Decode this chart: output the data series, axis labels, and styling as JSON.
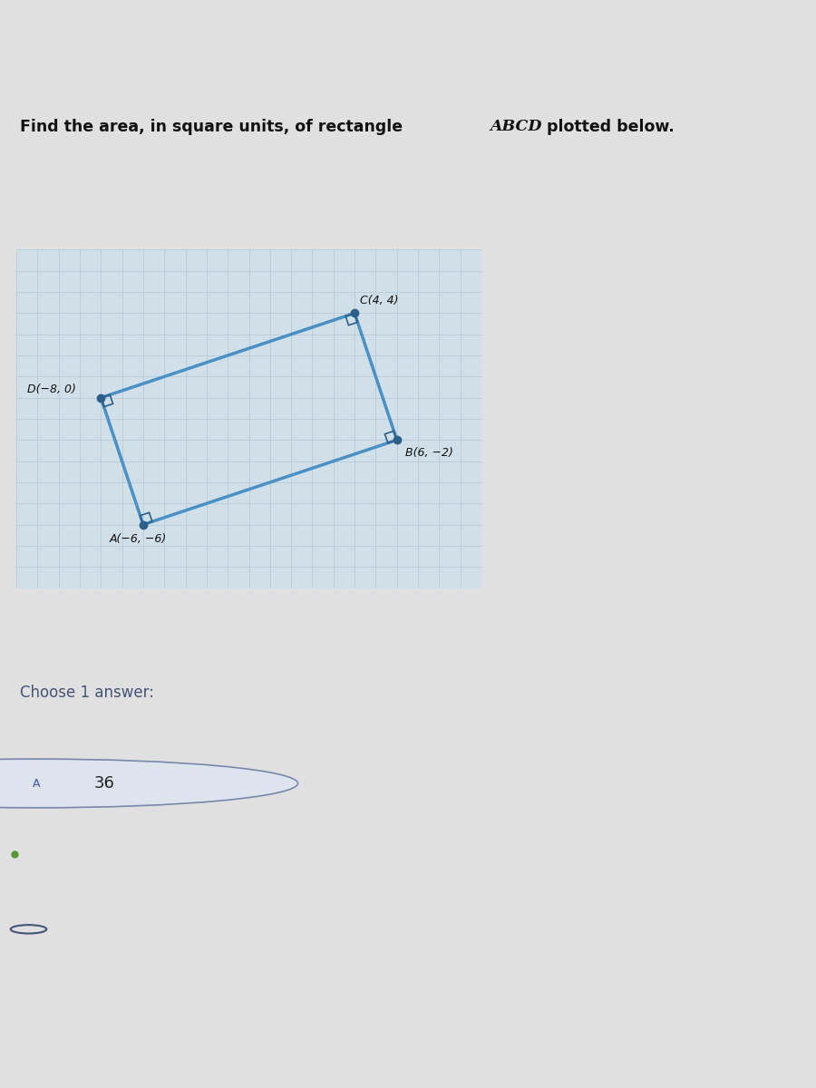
{
  "points": {
    "A": [
      -6,
      -6
    ],
    "B": [
      6,
      -2
    ],
    "C": [
      4,
      4
    ],
    "D": [
      -8,
      0
    ]
  },
  "rect_color": "#4a90c4",
  "point_color": "#2c5f8a",
  "bg_color": "#e0e0e0",
  "plot_bg": "#d0dfe8",
  "grid_color": "#b8ccd8",
  "xlim": [
    -12,
    10
  ],
  "ylim": [
    -9,
    7
  ],
  "bottom_strip_color": "#a8b4cc",
  "sep_line_color": "#8090b8",
  "top_bar_color": "#cccccc"
}
